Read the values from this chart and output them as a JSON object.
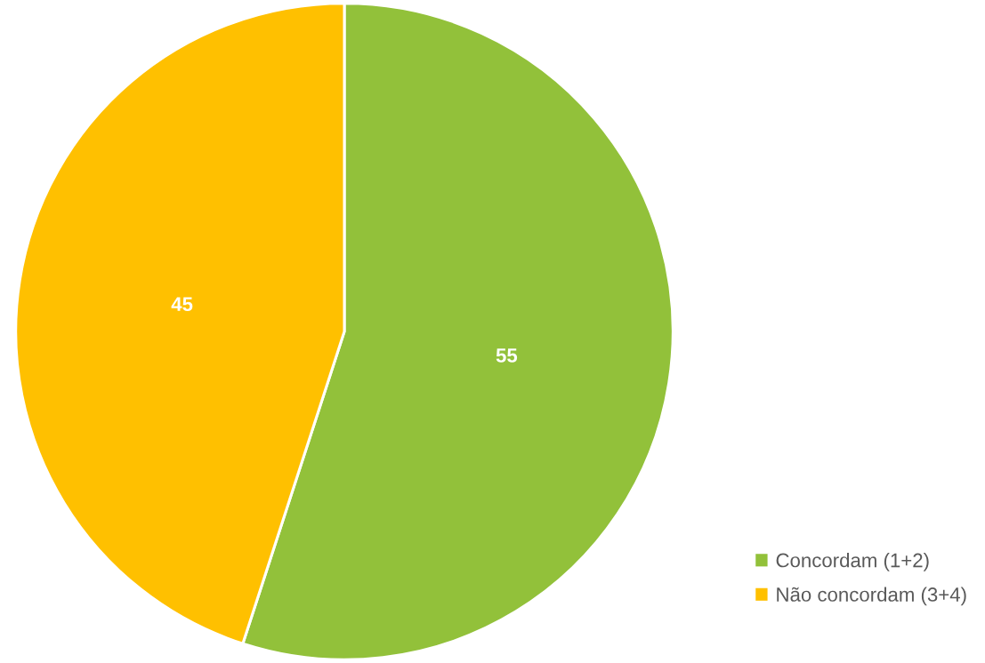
{
  "chart_data": {
    "type": "pie",
    "categories": [
      "Concordam (1+2)",
      "Não concordam (3+4)"
    ],
    "values": [
      55,
      45
    ],
    "colors": [
      "#92c13a",
      "#ffc000"
    ],
    "data_labels": true,
    "legend": "bottom right"
  }
}
